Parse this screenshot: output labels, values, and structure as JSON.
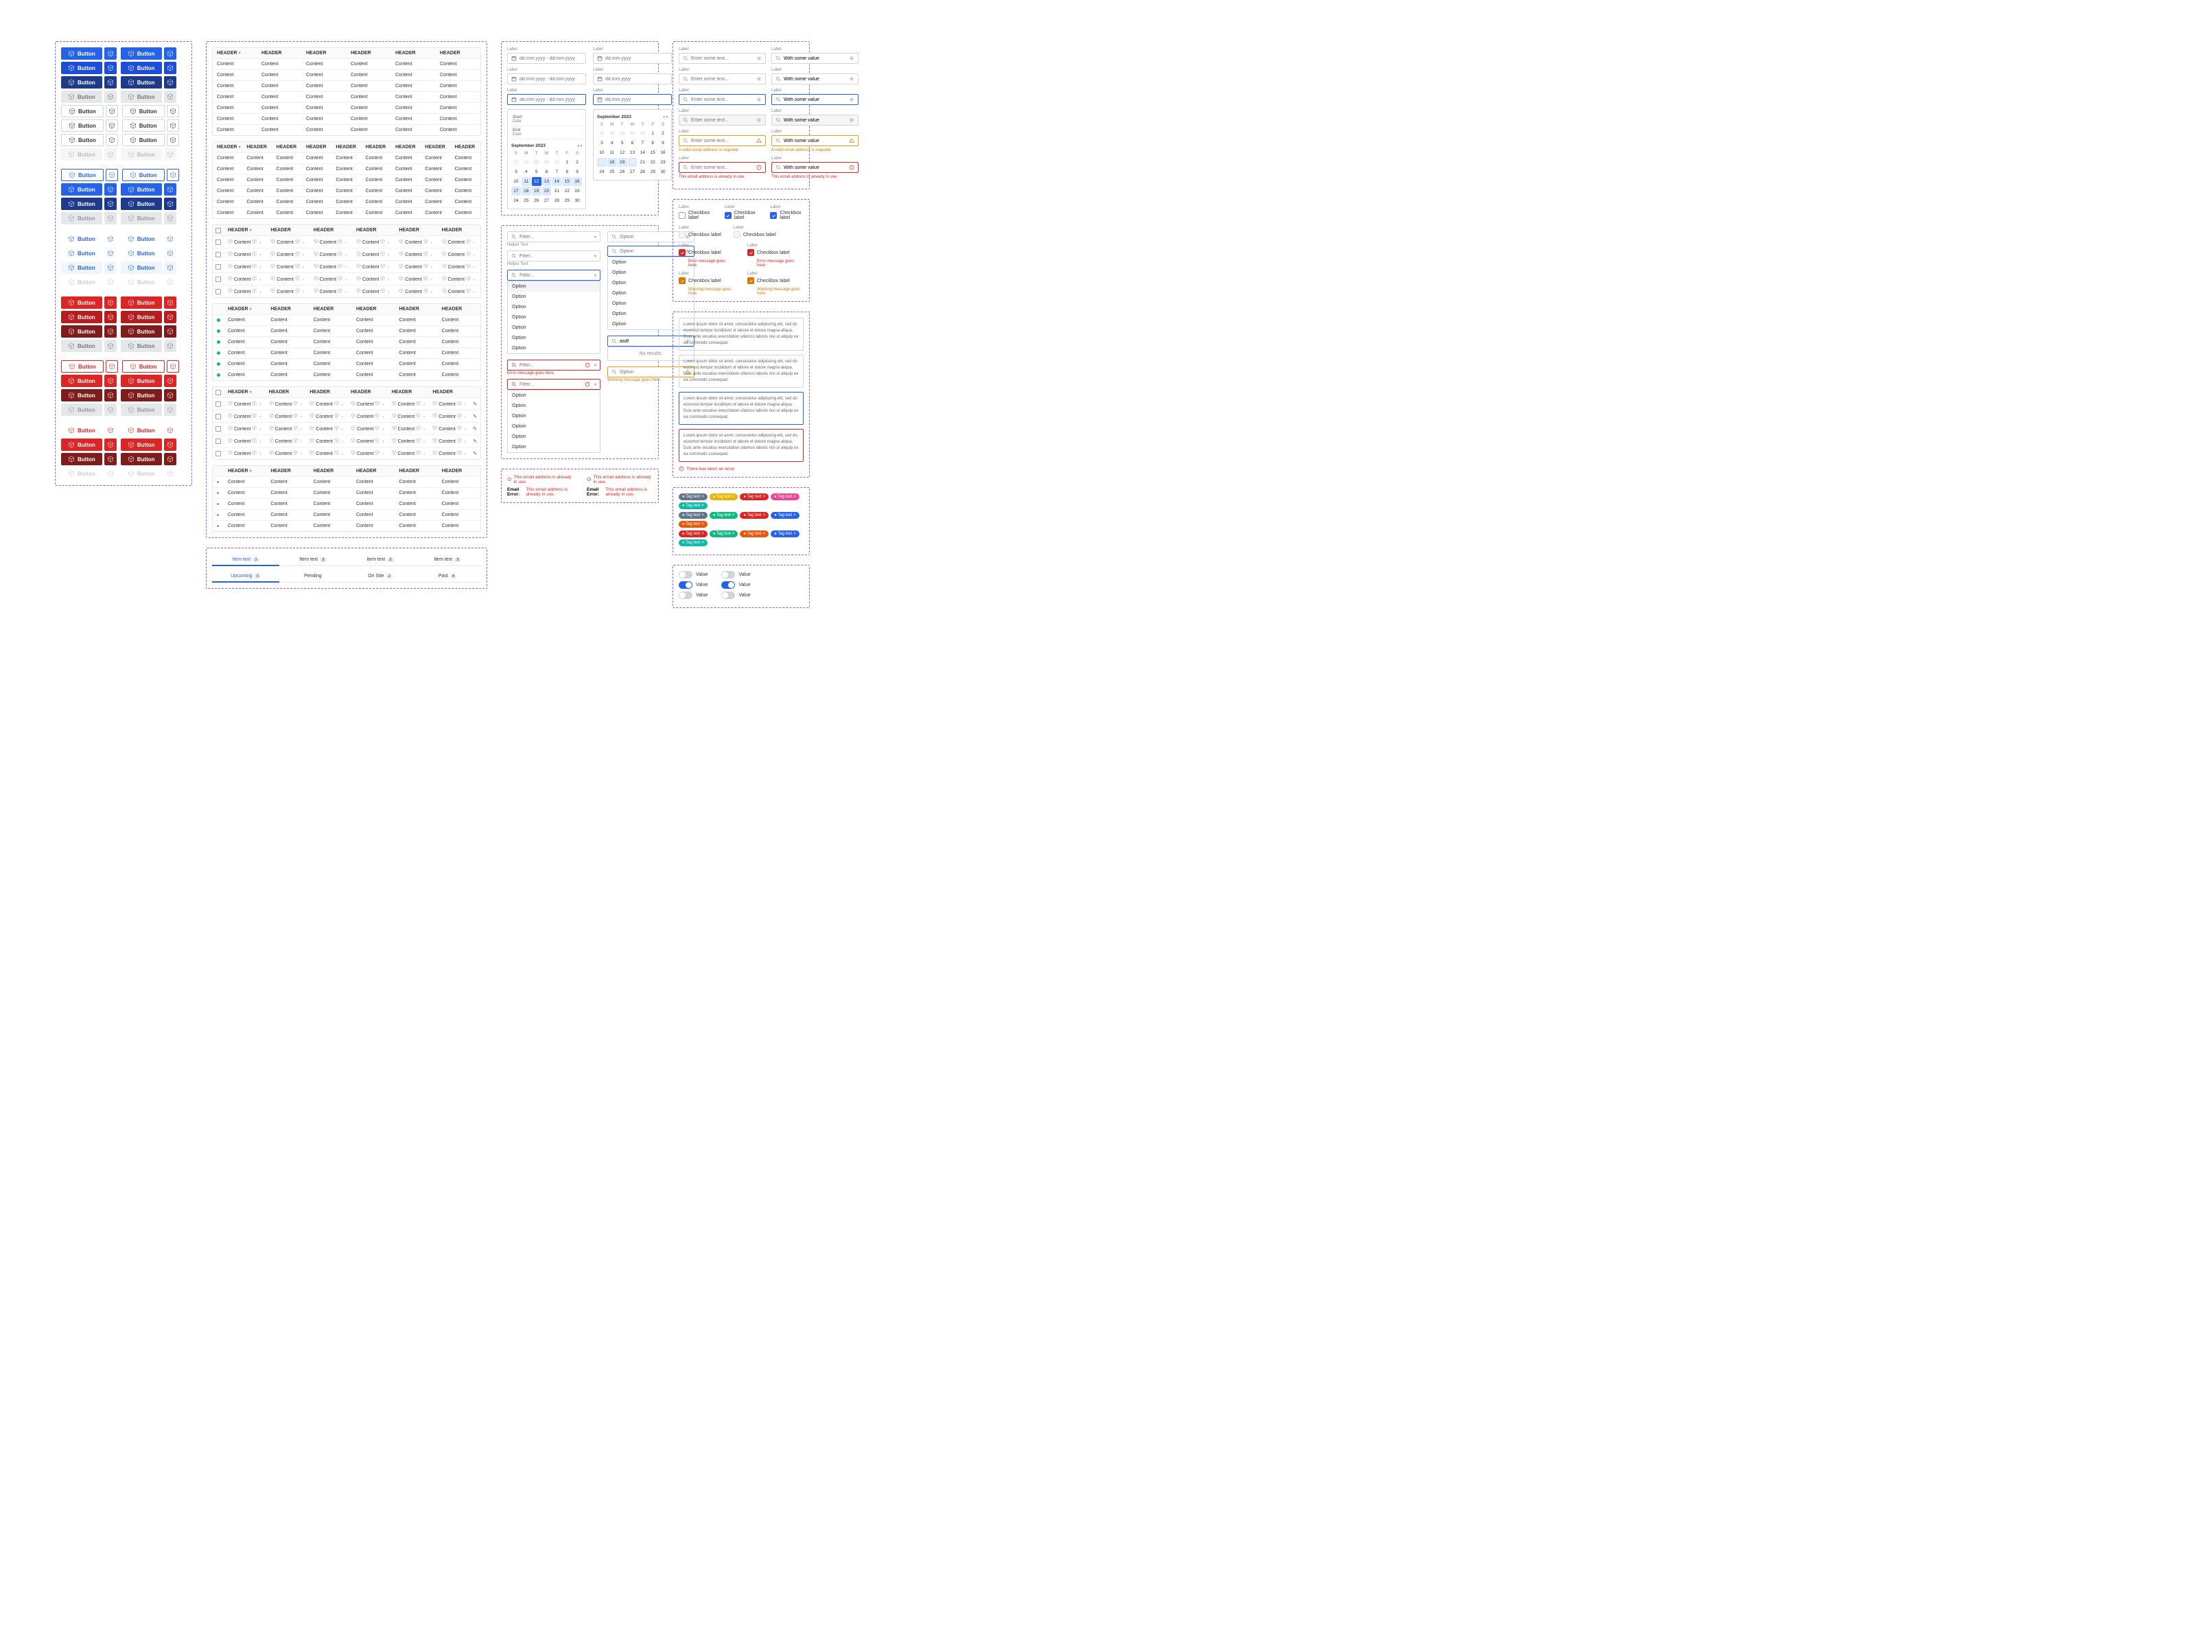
{
  "colors": {
    "blue500": "#2563eb",
    "blue700": "#1d4ed8",
    "blue900": "#1e3a8a",
    "gray200": "#e5e7eb",
    "gray400": "#9ca3af",
    "red500": "#dc2626",
    "red700": "#b91c1c",
    "red900": "#7f1d1d",
    "green500": "#10b981",
    "amber500": "#f59e0b",
    "violet500": "#8b5cf6",
    "teal500": "#14b8a6",
    "orange500": "#ea580c",
    "pink500": "#ec4899",
    "yellow500": "#eab308",
    "slate500": "#64748b"
  },
  "button_label": "Button",
  "buttons_blue": [
    {
      "bg": "#2563eb",
      "fg": "#ffffff"
    },
    {
      "bg": "#1d4ed8",
      "fg": "#ffffff"
    },
    {
      "bg": "#1e3a8a",
      "fg": "#ffffff"
    },
    {
      "bg": "#e5e7eb",
      "fg": "#777777"
    },
    {
      "bg": "#ffffff",
      "fg": "#333333",
      "border": "#d1d5db"
    },
    {
      "bg": "#ffffff",
      "fg": "#333333",
      "border": "#d1d5db"
    },
    {
      "bg": "#ffffff",
      "fg": "#333333",
      "border": "#d1d5db"
    },
    {
      "bg": "#f5f5f5",
      "fg": "#bbbbbb"
    }
  ],
  "buttons_blue_outline": [
    {
      "bg": "#ffffff",
      "fg": "#2563eb",
      "border": "#2563eb"
    },
    {
      "bg": "#2563eb",
      "fg": "#ffffff"
    },
    {
      "bg": "#1e3a8a",
      "fg": "#ffffff"
    },
    {
      "bg": "#e5e7eb",
      "fg": "#999999"
    }
  ],
  "buttons_blue_ghost": [
    {
      "bg": "#ffffff",
      "fg": "#2563eb"
    },
    {
      "bg": "#ffffff",
      "fg": "#2563eb"
    },
    {
      "bg": "#eff6ff",
      "fg": "#2563eb"
    },
    {
      "bg": "#ffffff",
      "fg": "#cccccc"
    }
  ],
  "buttons_red": [
    {
      "bg": "#dc2626",
      "fg": "#ffffff"
    },
    {
      "bg": "#b91c1c",
      "fg": "#ffffff"
    },
    {
      "bg": "#7f1d1d",
      "fg": "#ffffff"
    },
    {
      "bg": "#e5e7eb",
      "fg": "#777777"
    }
  ],
  "buttons_red_outline": [
    {
      "bg": "#ffffff",
      "fg": "#dc2626",
      "border": "#dc2626"
    },
    {
      "bg": "#dc2626",
      "fg": "#ffffff"
    },
    {
      "bg": "#7f1d1d",
      "fg": "#ffffff"
    },
    {
      "bg": "#e5e7eb",
      "fg": "#999999"
    }
  ],
  "buttons_red_ghost": [
    {
      "bg": "#ffffff",
      "fg": "#dc2626"
    },
    {
      "bg": "#dc2626",
      "fg": "#ffffff"
    },
    {
      "bg": "#7f1d1d",
      "fg": "#ffffff"
    },
    {
      "bg": "#ffffff",
      "fg": "#cccccc"
    }
  ],
  "table1": {
    "cols": 6,
    "header": "HEADER",
    "cell": "Content",
    "rows": 7
  },
  "table2": {
    "cols": 9,
    "header": "HEADER",
    "cell": "Content",
    "rows": 6
  },
  "table3": {
    "cols": 6,
    "header": "HEADER",
    "cell": "Content",
    "rows": 5,
    "checkbox": true,
    "icons": true
  },
  "table4": {
    "cols": 6,
    "header": "HEADER",
    "cell": "Content",
    "rows": 6,
    "dots": true
  },
  "table5": {
    "cols": 6,
    "header": "HEADER",
    "cell": "Content",
    "rows": 5,
    "checkbox": true,
    "icons": true,
    "edit": true
  },
  "table6": {
    "cols": 6,
    "header": "HEADER",
    "cell": "Content",
    "rows": 5,
    "expand": true
  },
  "tabs1": [
    {
      "label": "Item text",
      "badge": "3",
      "active": true
    },
    {
      "label": "Item text",
      "badge": "3"
    },
    {
      "label": "Item text",
      "badge": "3"
    },
    {
      "label": "Item text",
      "badge": "3"
    }
  ],
  "tabs2": [
    {
      "label": "Upcoming",
      "badge": "8",
      "active": true
    },
    {
      "label": "Pending"
    },
    {
      "label": "On Site",
      "badge": "2"
    },
    {
      "label": "Past",
      "badge": "4"
    }
  ],
  "date_range": {
    "label": "Label",
    "placeholder": "dd.mm.yyyy - dd.mm.yyyy",
    "start": "Start",
    "start_sub": "Date",
    "end": "End",
    "end_sub": "Date",
    "month": "September 2023",
    "dow": [
      "S",
      "M",
      "T",
      "W",
      "T",
      "F",
      "S"
    ],
    "days": [
      [
        27,
        28,
        29,
        30,
        31,
        1,
        2
      ],
      [
        3,
        4,
        5,
        6,
        7,
        8,
        9
      ],
      [
        10,
        11,
        12,
        13,
        14,
        15,
        16
      ],
      [
        17,
        18,
        19,
        20,
        21,
        22,
        23
      ],
      [
        24,
        25,
        26,
        27,
        28,
        29,
        30
      ]
    ],
    "muted_start": 5,
    "sel": 12,
    "range_start": 11,
    "range_end": 20
  },
  "date_single": {
    "label": "Label",
    "placeholder": "dd.mm.yyyy",
    "month": "September 2023",
    "dow": [
      "S",
      "M",
      "T",
      "W",
      "T",
      "F",
      "S"
    ],
    "days": [
      [
        27,
        28,
        29,
        30,
        31,
        1,
        2
      ],
      [
        3,
        4,
        5,
        6,
        7,
        8,
        9
      ],
      [
        10,
        11,
        12,
        13,
        14,
        15,
        16
      ],
      [
        17,
        18,
        19,
        20,
        21,
        22,
        23
      ],
      [
        24,
        25,
        26,
        27,
        28,
        29,
        30
      ]
    ],
    "muted_start": 5,
    "range_start": 17,
    "range_end": 20
  },
  "filter": {
    "placeholder": "Filter...",
    "helper": "Helper Text",
    "error": "Error message goes here.",
    "warning": "Warning message goes here.",
    "option": "Option",
    "option_count": 7
  },
  "select": {
    "placeholder": "Option",
    "search": "asdf",
    "no_results": "No results.",
    "option": "Option",
    "option_count": 7
  },
  "text_inputs": {
    "label": "Label",
    "placeholder": "Enter some text...",
    "value": "With some value",
    "warn": "A valid email address is required",
    "error": "This email address is already in use."
  },
  "checkbox": {
    "label": "Label",
    "text": "Checkbox label",
    "err": "Error message goes here.",
    "warn": "Warning message goes here."
  },
  "textarea": {
    "lorem": "Lorem ipsum dolor sit amet, consectetur adipiscing elit, sed do eiusmod tempor incididunt ut labore et dolore magna aliqua. Duis ante vocatius exercitation ullamco laboris nisi ut aliquip ex ea commodo consequat.",
    "error": "There has been an error"
  },
  "tags": {
    "label": "Tag text",
    "colors_row1": [
      "#64748b",
      "#eab308",
      "#dc2626",
      "#ec4899",
      "#14b8a6"
    ],
    "colors_row2": [
      "#64748b",
      "#10b981",
      "#dc2626",
      "#2563eb",
      "#ea580c"
    ],
    "colors_row3": [
      "#dc2626",
      "#10b981",
      "#ea580c",
      "#2563eb",
      "#14b8a6"
    ]
  },
  "toggle": {
    "label": "Value"
  },
  "error_block": {
    "line1": "This email address is already in use.",
    "line2_pre": "Email Error:",
    "line2": "This email address is already in use."
  }
}
